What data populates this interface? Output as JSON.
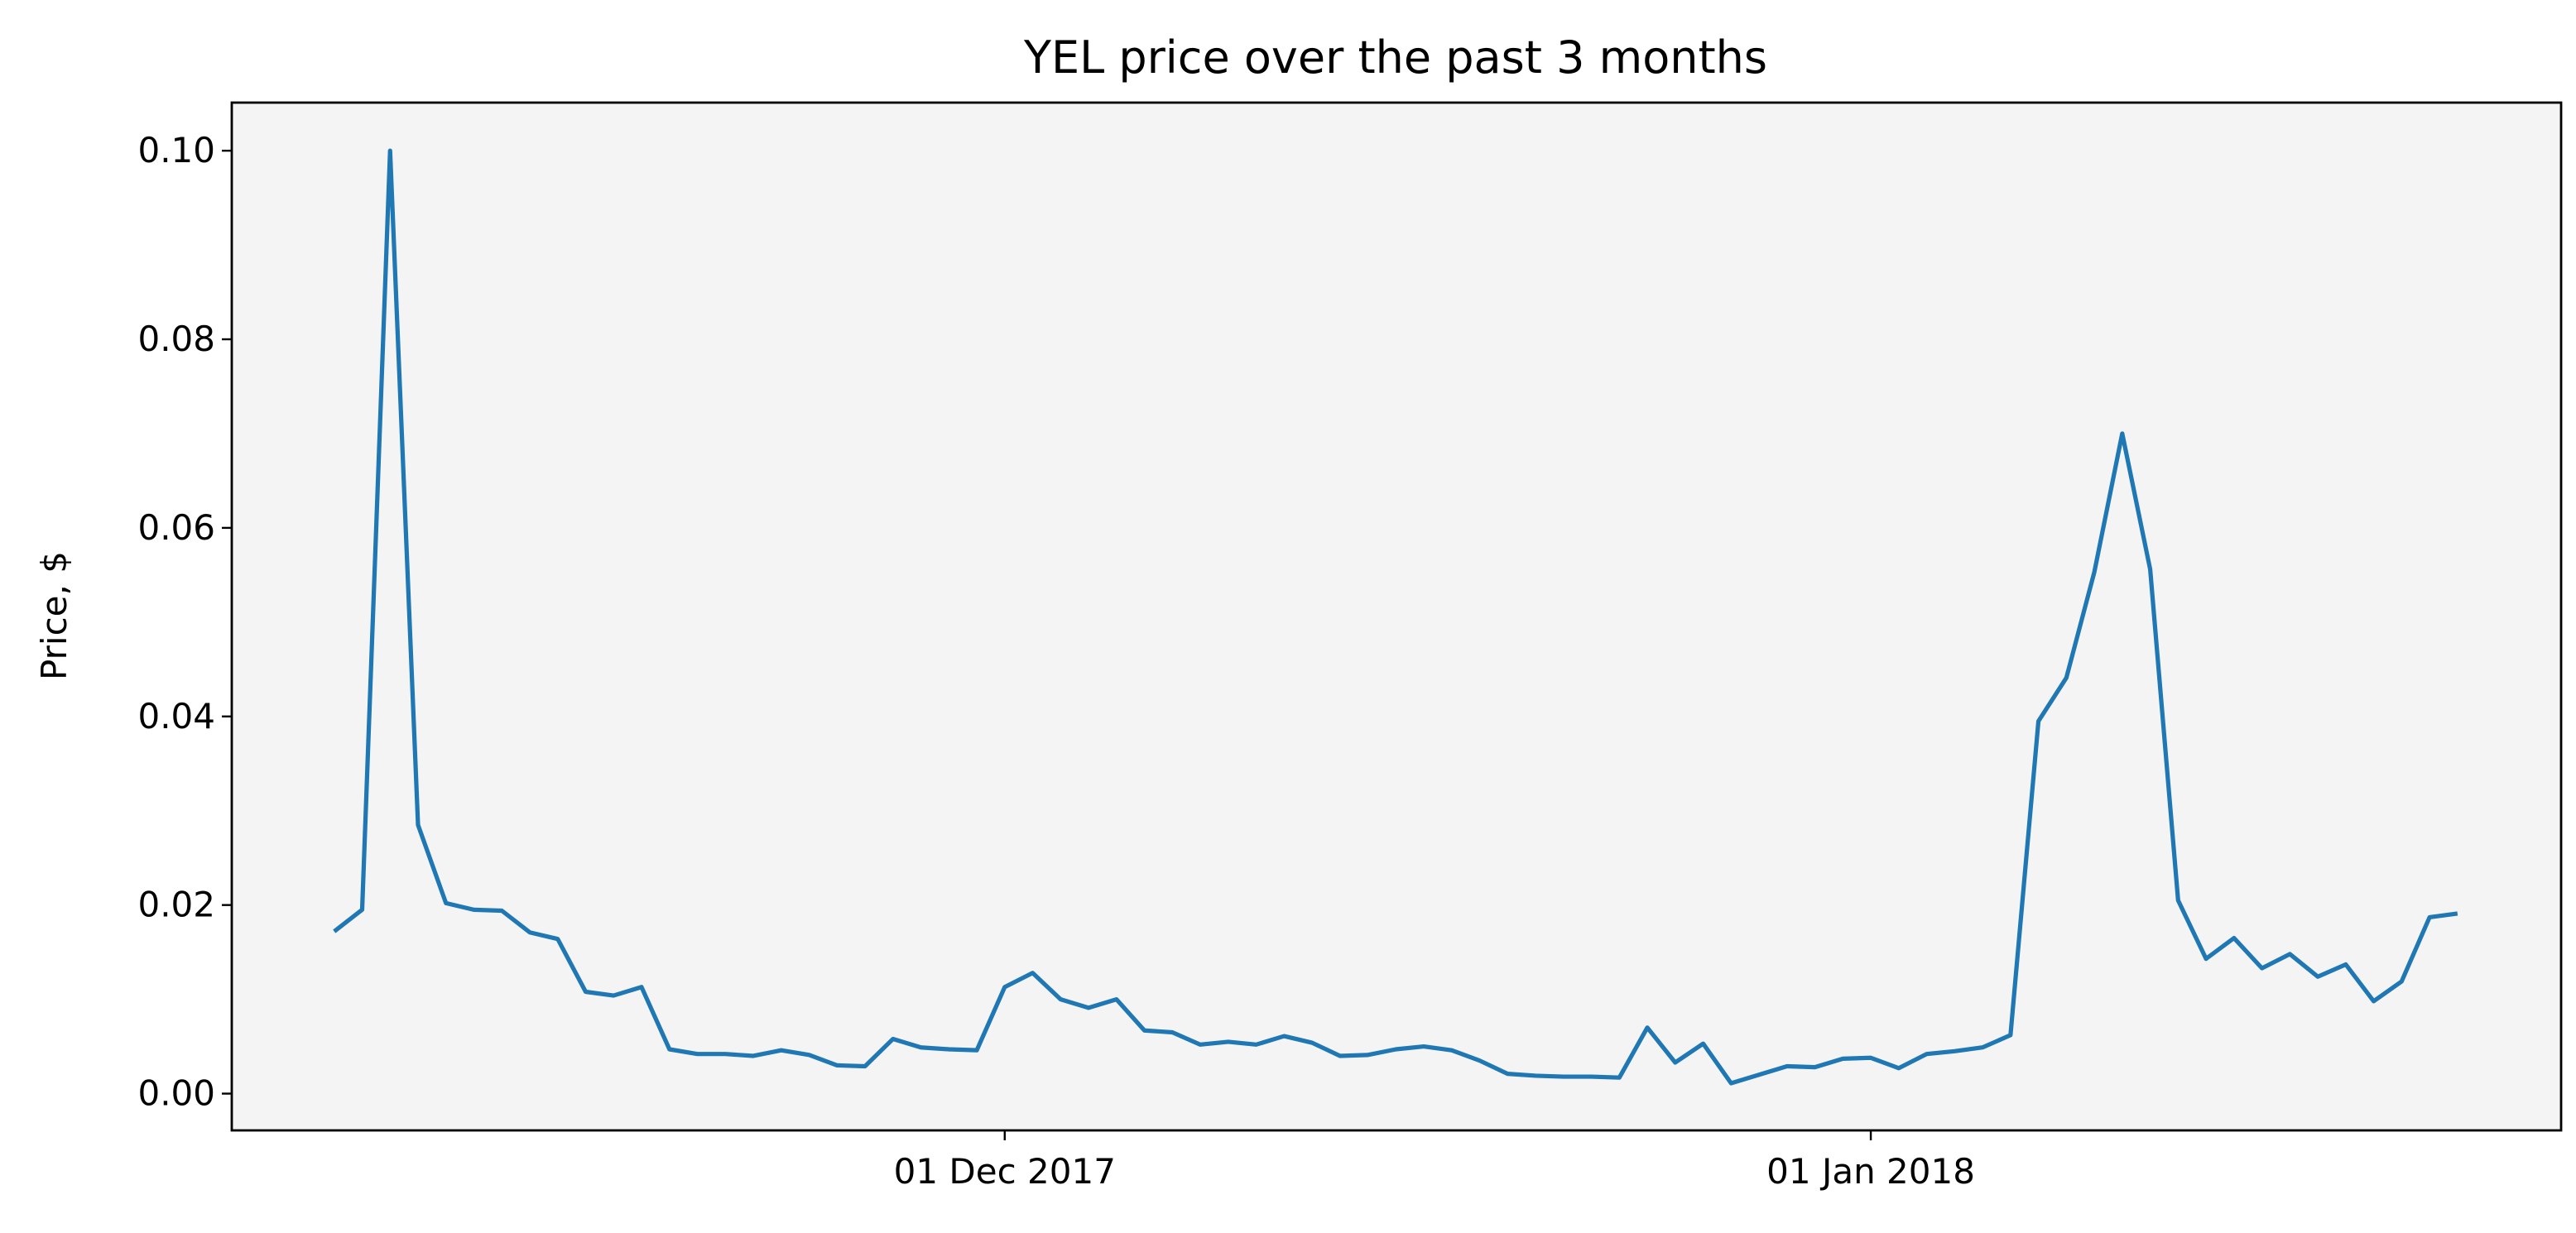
{
  "chart_data": {
    "type": "line",
    "title": "YEL price over the past 3 months",
    "ylabel": "Price, $",
    "color": "#1f77b4",
    "x": [
      "2017-11-07",
      "2017-11-08",
      "2017-11-09",
      "2017-11-10",
      "2017-11-11",
      "2017-11-12",
      "2017-11-13",
      "2017-11-14",
      "2017-11-15",
      "2017-11-16",
      "2017-11-17",
      "2017-11-18",
      "2017-11-19",
      "2017-11-20",
      "2017-11-21",
      "2017-11-22",
      "2017-11-23",
      "2017-11-24",
      "2017-11-25",
      "2017-11-26",
      "2017-11-27",
      "2017-11-28",
      "2017-11-29",
      "2017-11-30",
      "2017-12-01",
      "2017-12-02",
      "2017-12-03",
      "2017-12-04",
      "2017-12-05",
      "2017-12-06",
      "2017-12-07",
      "2017-12-08",
      "2017-12-09",
      "2017-12-10",
      "2017-12-11",
      "2017-12-12",
      "2017-12-13",
      "2017-12-14",
      "2017-12-15",
      "2017-12-16",
      "2017-12-17",
      "2017-12-18",
      "2017-12-19",
      "2017-12-20",
      "2017-12-21",
      "2017-12-22",
      "2017-12-23",
      "2017-12-24",
      "2017-12-25",
      "2017-12-26",
      "2017-12-27",
      "2017-12-28",
      "2017-12-29",
      "2017-12-30",
      "2017-12-31",
      "2018-01-01",
      "2018-01-02",
      "2018-01-03",
      "2018-01-04",
      "2018-01-05",
      "2018-01-06",
      "2018-01-07",
      "2018-01-08",
      "2018-01-09",
      "2018-01-10",
      "2018-01-11",
      "2018-01-12",
      "2018-01-13",
      "2018-01-14",
      "2018-01-15",
      "2018-01-16",
      "2018-01-17",
      "2018-01-18",
      "2018-01-19",
      "2018-01-20",
      "2018-01-21",
      "2018-01-22"
    ],
    "values": [
      0.0172,
      0.0195,
      0.1,
      0.0285,
      0.0202,
      0.0195,
      0.0194,
      0.0171,
      0.0164,
      0.0108,
      0.0104,
      0.0113,
      0.0047,
      0.0042,
      0.0042,
      0.004,
      0.0046,
      0.0041,
      0.003,
      0.0029,
      0.0058,
      0.0049,
      0.0047,
      0.0046,
      0.0113,
      0.0128,
      0.01,
      0.0091,
      0.01,
      0.0067,
      0.0065,
      0.0052,
      0.0055,
      0.0052,
      0.0061,
      0.0054,
      0.004,
      0.0041,
      0.0047,
      0.005,
      0.0046,
      0.0035,
      0.0021,
      0.0019,
      0.0018,
      0.0018,
      0.0017,
      0.007,
      0.0033,
      0.0053,
      0.0011,
      0.002,
      0.0029,
      0.0028,
      0.0037,
      0.0038,
      0.0027,
      0.0042,
      0.0045,
      0.0049,
      0.0062,
      0.0395,
      0.0441,
      0.0553,
      0.07,
      0.0556,
      0.0205,
      0.0143,
      0.0165,
      0.0133,
      0.0148,
      0.0124,
      0.0137,
      0.0098,
      0.0119,
      0.0187,
      0.0191
    ],
    "xlim": [
      "2017-11-03T08:00",
      "2018-01-25T17:00"
    ],
    "xticks": [
      {
        "value": "2017-12-01",
        "label": "01 Dec 2017"
      },
      {
        "value": "2018-01-01",
        "label": "01 Jan 2018"
      }
    ],
    "ylim": [
      -0.0039,
      0.1051
    ],
    "yticks": [
      {
        "value": 0,
        "label": "0.00"
      },
      {
        "value": 0.02,
        "label": "0.02"
      },
      {
        "value": 0.04,
        "label": "0.04"
      },
      {
        "value": 0.06,
        "label": "0.06"
      },
      {
        "value": 0.08,
        "label": "0.08"
      },
      {
        "value": 0.1,
        "label": "0.10"
      }
    ],
    "grid": false
  }
}
